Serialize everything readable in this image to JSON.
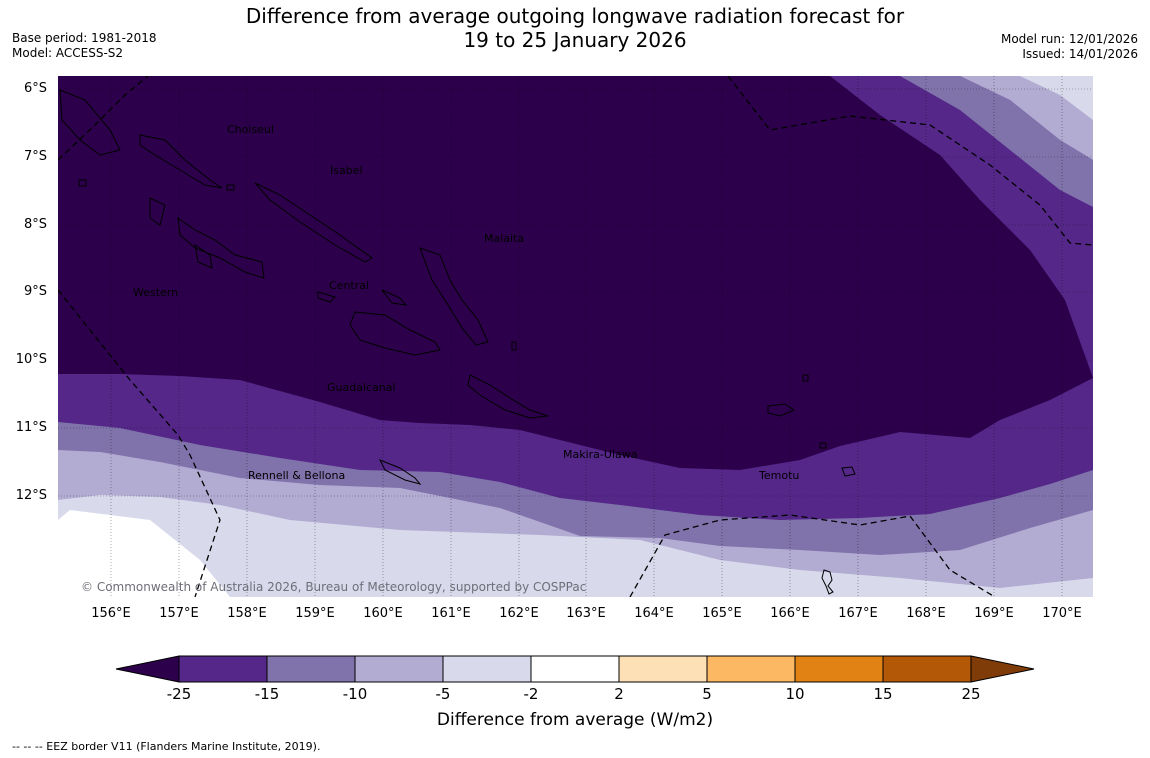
{
  "title": {
    "line1": "Difference from average outgoing longwave radiation forecast for",
    "line2": "19 to 25 January 2026"
  },
  "meta": {
    "base_period": "Base period: 1981-2018",
    "model": "Model: ACCESS-S2",
    "model_run": "Model run: 12/01/2026",
    "issued": "Issued: 14/01/2026"
  },
  "map": {
    "lat_labels": [
      "6°S",
      "7°S",
      "8°S",
      "9°S",
      "10°S",
      "11°S",
      "12°S"
    ],
    "lon_labels": [
      "156°E",
      "157°E",
      "158°E",
      "159°E",
      "160°E",
      "161°E",
      "162°E",
      "163°E",
      "164°E",
      "165°E",
      "166°E",
      "167°E",
      "168°E",
      "169°E",
      "170°E"
    ],
    "regions": {
      "choiseul": "Choiseul",
      "isabel": "Isabel",
      "malaita": "Malaita",
      "western": "Western",
      "central": "Central",
      "guadalcanal": "Guadalcanal",
      "makira": "Makira-Ulawa",
      "rennell": "Rennell & Bellona",
      "temotu": "Temotu"
    },
    "copyright": "© Commonwealth of Australia 2026, Bureau of Meteorology, supported by COSPPac"
  },
  "colorbar": {
    "ticks": [
      "-25",
      "-15",
      "-10",
      "-5",
      "-2",
      "2",
      "5",
      "10",
      "15",
      "25"
    ],
    "title": "Difference from average (W/m2)",
    "colors": {
      "under": "#2d004b",
      "c1": "#542788",
      "c2": "#8073ac",
      "c3": "#b2abd2",
      "c4": "#d8daeb",
      "c5": "#ffffff",
      "c6": "#fee0b6",
      "c7": "#fdb863",
      "c8": "#e08214",
      "c9": "#b35806",
      "over": "#7f3b08"
    }
  },
  "footnote": "--  --  -- EEZ border V11 (Flanders Marine Institute, 2019)."
}
